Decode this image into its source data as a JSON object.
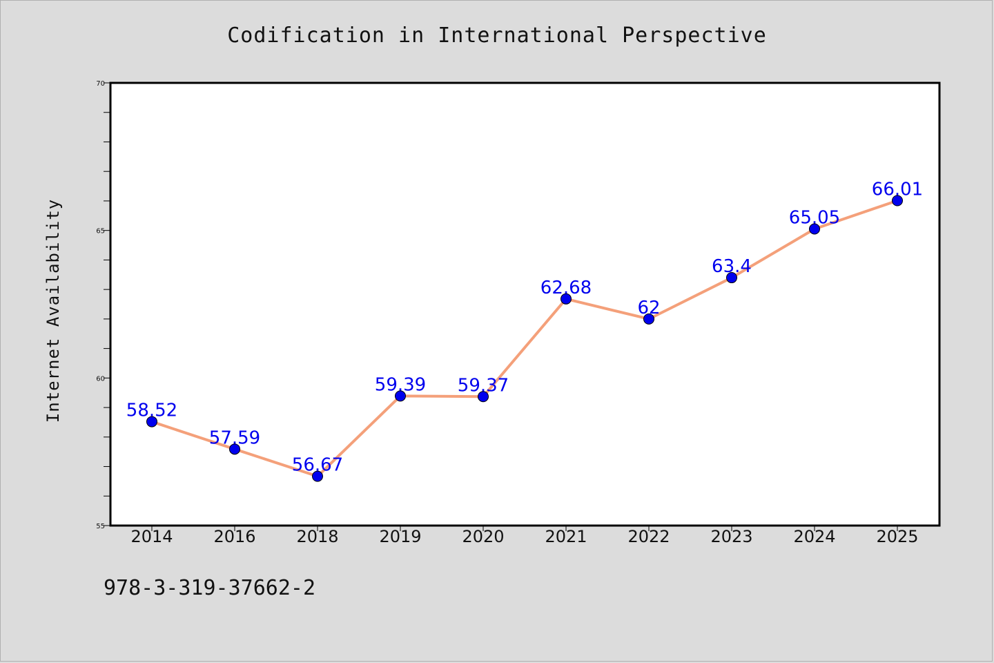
{
  "chart_data": {
    "type": "line",
    "title": "Codification in International Perspective",
    "xlabel": "",
    "ylabel": "Internet Availability",
    "categories": [
      "2014",
      "2016",
      "2018",
      "2019",
      "2020",
      "2021",
      "2022",
      "2023",
      "2024",
      "2025"
    ],
    "series": [
      {
        "values": [
          58.52,
          57.59,
          56.67,
          59.39,
          59.37,
          62.68,
          62,
          63.4,
          65.05,
          66.01
        ],
        "labels": [
          "58.52",
          "57.59",
          "56.67",
          "59.39",
          "59.37",
          "62.68",
          "62",
          "63.4",
          "65.05",
          "66.01"
        ]
      }
    ],
    "ylim": [
      55,
      70
    ],
    "yticks": [
      "55",
      "60",
      "65",
      "70"
    ],
    "grid": false,
    "colors": {
      "line": "#f4a07a",
      "marker": "#0000ee",
      "label": "#0000ee",
      "background": "#dcdcdc",
      "plot_bg": "#ffffff"
    }
  },
  "footer": {
    "isbn": "978-3-319-37662-2"
  }
}
